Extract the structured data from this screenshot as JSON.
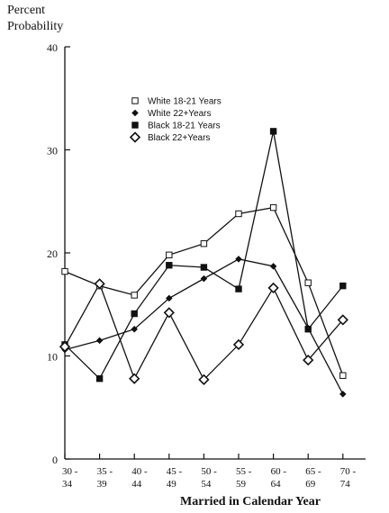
{
  "chart_data": {
    "type": "line",
    "ylabel_line1": "Percent",
    "ylabel_line2": "Probability",
    "xlabel": "Married in Calendar Year",
    "ylim": [
      0,
      40
    ],
    "yticks": [
      0,
      10,
      20,
      30,
      40
    ],
    "categories": [
      {
        "top": "30 -",
        "bottom": "34"
      },
      {
        "top": "35 -",
        "bottom": "39"
      },
      {
        "top": "40 -",
        "bottom": "44"
      },
      {
        "top": "45 -",
        "bottom": "49"
      },
      {
        "top": "50 -",
        "bottom": "54"
      },
      {
        "top": "55 -",
        "bottom": "59"
      },
      {
        "top": "60 -",
        "bottom": "64"
      },
      {
        "top": "65 -",
        "bottom": "69"
      },
      {
        "top": "70 -",
        "bottom": "74"
      }
    ],
    "legend_position": "upper-left",
    "series": [
      {
        "name": "White 18-21 Years",
        "marker": "open-square",
        "values": [
          18.2,
          16.8,
          15.9,
          19.8,
          20.9,
          23.8,
          24.4,
          17.1,
          8.1
        ]
      },
      {
        "name": "White 22+Years",
        "marker": "small-diamond",
        "values": [
          10.6,
          11.5,
          12.6,
          15.6,
          17.5,
          19.4,
          18.7,
          12.7,
          6.3
        ]
      },
      {
        "name": "Black 18-21 Years",
        "marker": "filled-square",
        "values": [
          11.1,
          7.8,
          14.1,
          18.8,
          18.6,
          16.5,
          31.8,
          12.6,
          16.8
        ]
      },
      {
        "name": "Black 22+Years",
        "marker": "open-diamond",
        "values": [
          10.9,
          17.0,
          7.8,
          14.2,
          7.7,
          11.1,
          16.6,
          9.6,
          13.5
        ]
      }
    ]
  }
}
